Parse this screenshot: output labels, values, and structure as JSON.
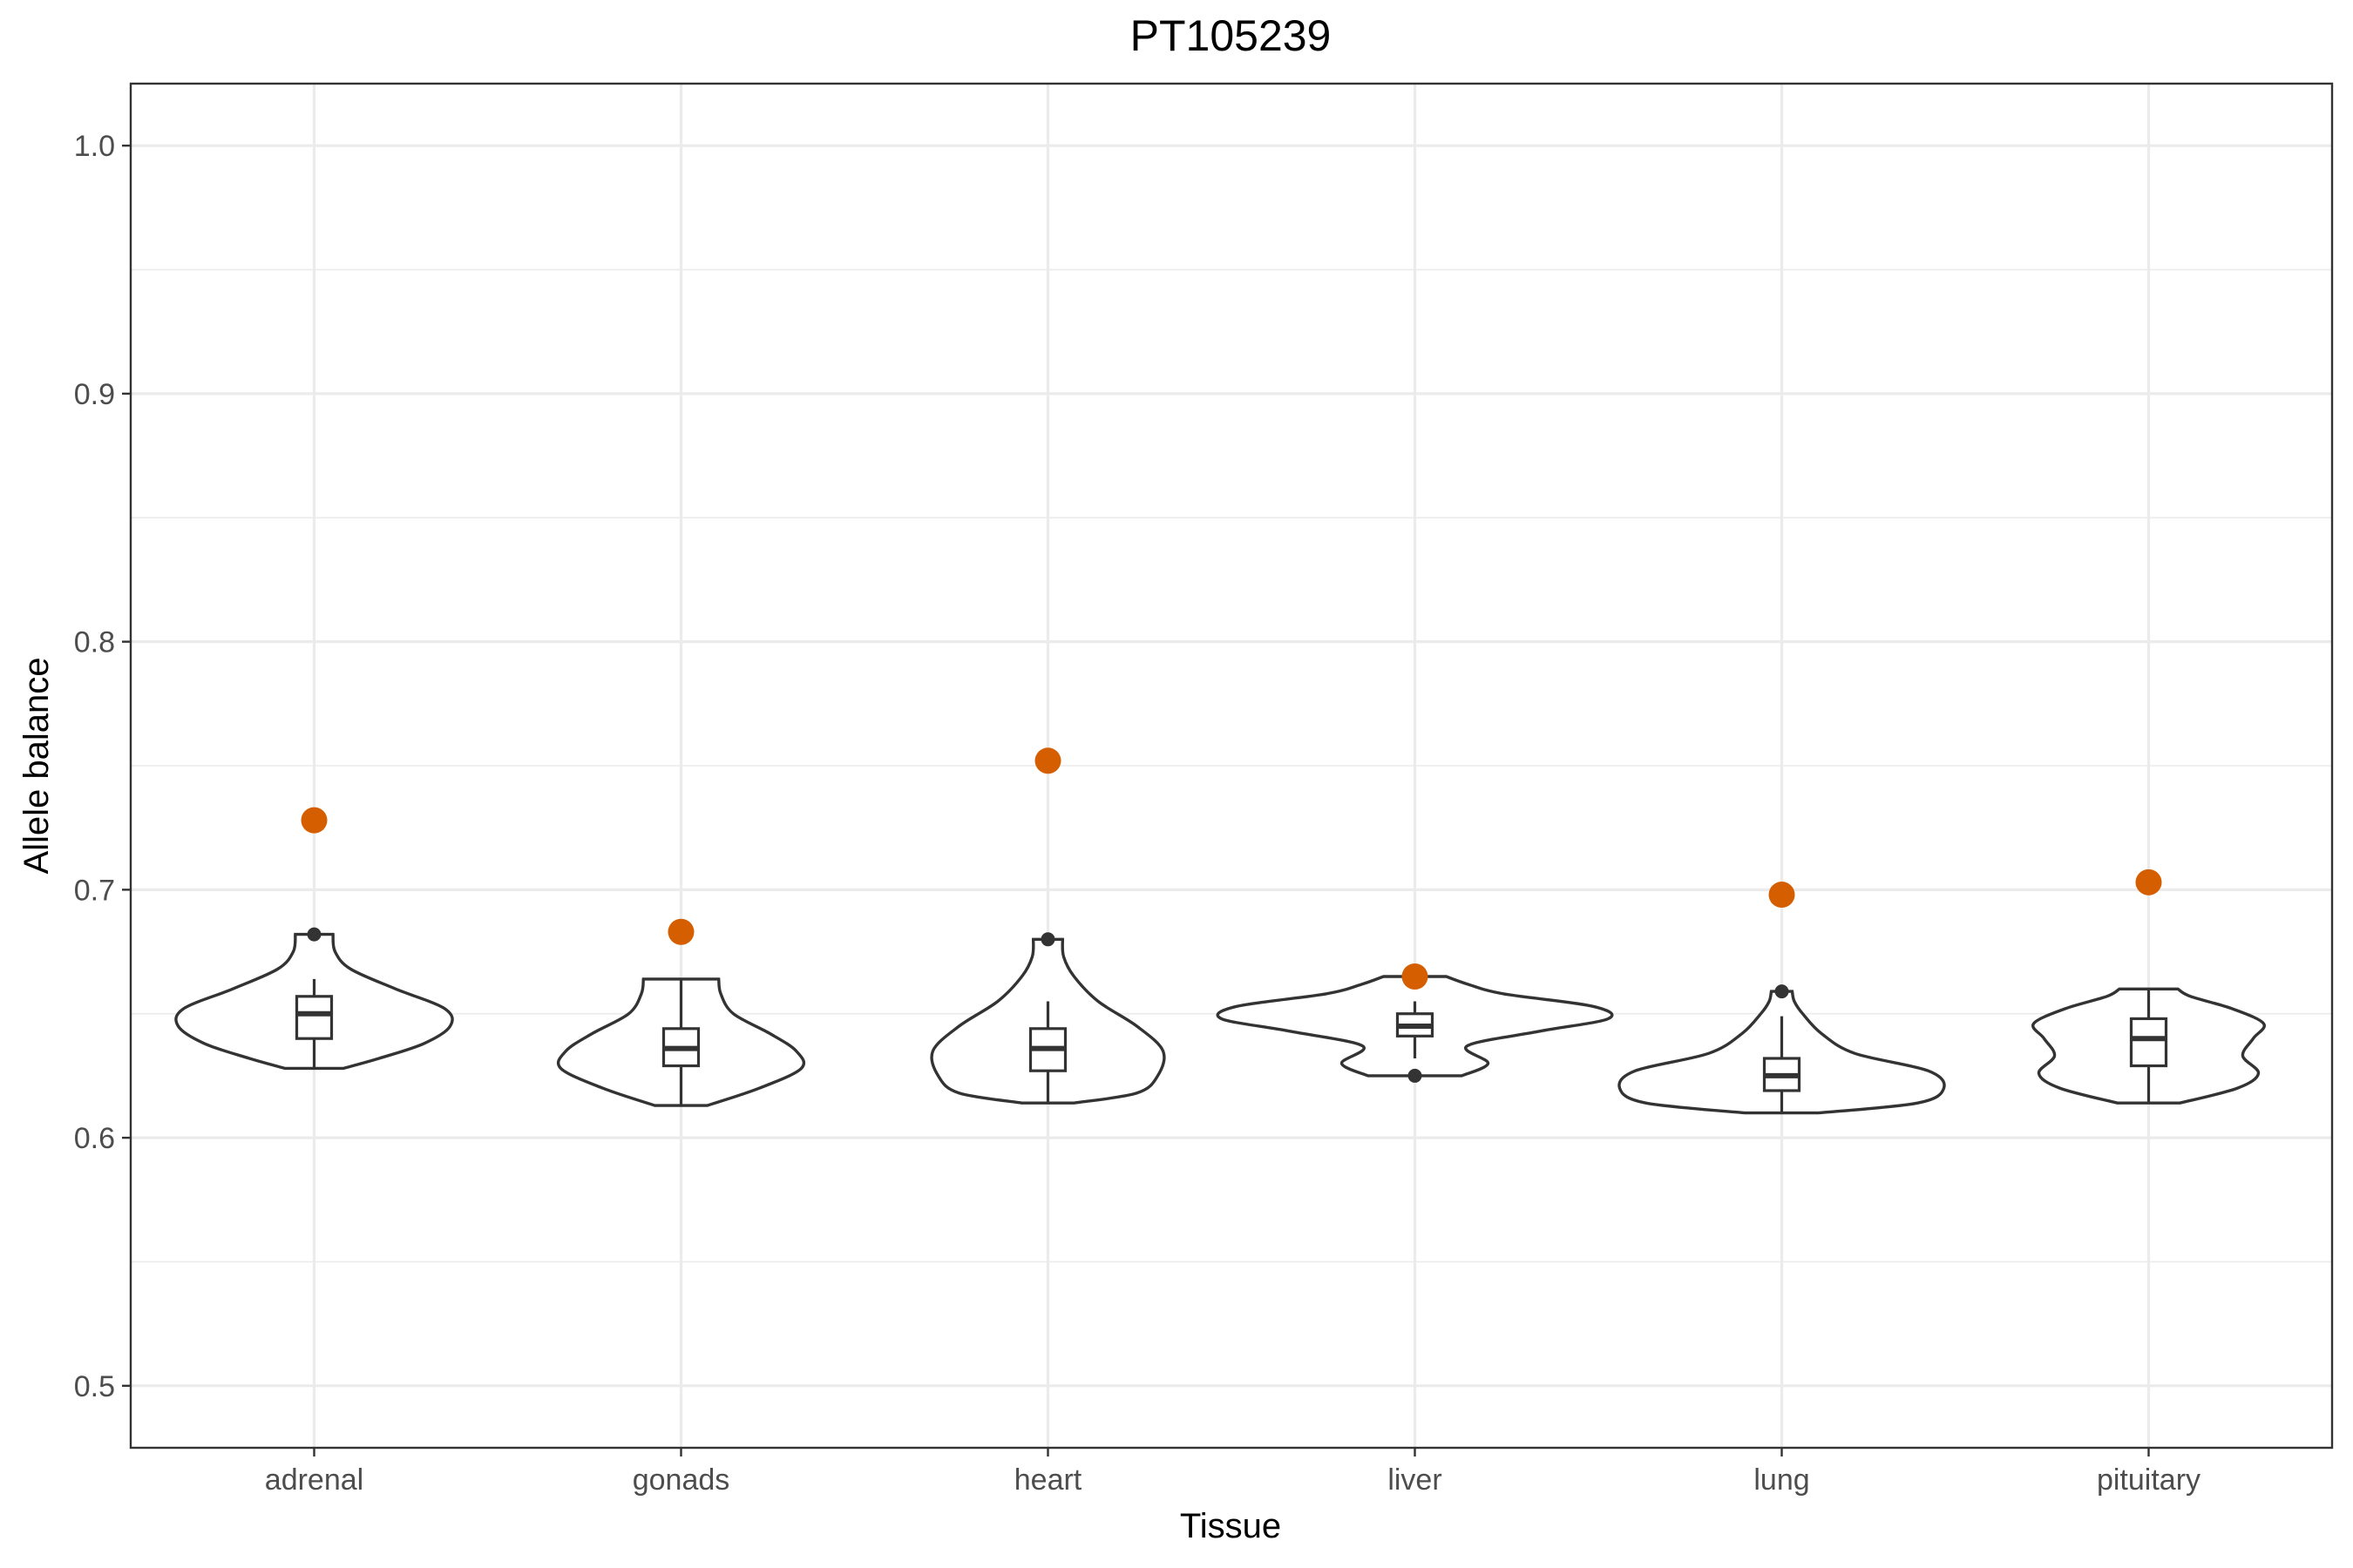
{
  "chart_data": {
    "type": "violin",
    "title": "PT105239",
    "xlabel": "Tissue",
    "ylabel": "Allele balance",
    "ylim": [
      0.475,
      1.025
    ],
    "y_ticks": [
      "0.5",
      "0.6",
      "0.7",
      "0.8",
      "0.9",
      "1.0"
    ],
    "grid": true,
    "highlight_color": "#d55e00",
    "outline_color": "#333333",
    "categories": [
      "adrenal",
      "gonads",
      "heart",
      "liver",
      "lung",
      "pituitary"
    ],
    "groups": [
      {
        "name": "adrenal",
        "box": {
          "whisker_low": 0.628,
          "q1": 0.64,
          "median": 0.65,
          "q3": 0.657,
          "whisker_high": 0.664
        },
        "outliers": [
          0.682
        ],
        "highlight": 0.728,
        "violin": [
          [
            0.628,
            0.028
          ],
          [
            0.632,
            0.062
          ],
          [
            0.638,
            0.105
          ],
          [
            0.645,
            0.13
          ],
          [
            0.652,
            0.125
          ],
          [
            0.66,
            0.078
          ],
          [
            0.668,
            0.035
          ],
          [
            0.675,
            0.02
          ],
          [
            0.682,
            0.018
          ]
        ]
      },
      {
        "name": "gonads",
        "box": {
          "whisker_low": 0.613,
          "q1": 0.629,
          "median": 0.636,
          "q3": 0.644,
          "whisker_high": 0.664
        },
        "outliers": [],
        "highlight": 0.683,
        "violin": [
          [
            0.613,
            0.025
          ],
          [
            0.62,
            0.075
          ],
          [
            0.628,
            0.115
          ],
          [
            0.635,
            0.11
          ],
          [
            0.642,
            0.085
          ],
          [
            0.65,
            0.05
          ],
          [
            0.658,
            0.038
          ],
          [
            0.664,
            0.036
          ]
        ]
      },
      {
        "name": "heart",
        "box": {
          "whisker_low": 0.614,
          "q1": 0.627,
          "median": 0.636,
          "q3": 0.644,
          "whisker_high": 0.655
        },
        "outliers": [
          0.68
        ],
        "highlight": 0.752,
        "violin": [
          [
            0.614,
            0.025
          ],
          [
            0.618,
            0.085
          ],
          [
            0.625,
            0.105
          ],
          [
            0.635,
            0.11
          ],
          [
            0.645,
            0.085
          ],
          [
            0.655,
            0.048
          ],
          [
            0.665,
            0.025
          ],
          [
            0.673,
            0.015
          ],
          [
            0.68,
            0.014
          ]
        ]
      },
      {
        "name": "liver",
        "box": {
          "whisker_low": 0.632,
          "q1": 0.641,
          "median": 0.645,
          "q3": 0.65,
          "whisker_high": 0.655
        },
        "outliers": [
          0.625
        ],
        "highlight": 0.665,
        "violin": [
          [
            0.625,
            0.045
          ],
          [
            0.63,
            0.07
          ],
          [
            0.637,
            0.05
          ],
          [
            0.643,
            0.12
          ],
          [
            0.648,
            0.185
          ],
          [
            0.653,
            0.17
          ],
          [
            0.658,
            0.085
          ],
          [
            0.662,
            0.05
          ],
          [
            0.665,
            0.03
          ]
        ]
      },
      {
        "name": "lung",
        "box": {
          "whisker_low": 0.61,
          "q1": 0.619,
          "median": 0.625,
          "q3": 0.632,
          "whisker_high": 0.649
        },
        "outliers": [
          0.659
        ],
        "highlight": 0.698,
        "violin": [
          [
            0.61,
            0.035
          ],
          [
            0.614,
            0.13
          ],
          [
            0.62,
            0.155
          ],
          [
            0.627,
            0.14
          ],
          [
            0.634,
            0.07
          ],
          [
            0.642,
            0.038
          ],
          [
            0.65,
            0.02
          ],
          [
            0.655,
            0.012
          ],
          [
            0.659,
            0.01
          ]
        ]
      },
      {
        "name": "pituitary",
        "box": {
          "whisker_low": 0.614,
          "q1": 0.629,
          "median": 0.64,
          "q3": 0.648,
          "whisker_high": 0.66
        },
        "outliers": [],
        "highlight": 0.703,
        "violin": [
          [
            0.614,
            0.03
          ],
          [
            0.62,
            0.085
          ],
          [
            0.626,
            0.105
          ],
          [
            0.633,
            0.09
          ],
          [
            0.64,
            0.1
          ],
          [
            0.646,
            0.11
          ],
          [
            0.652,
            0.08
          ],
          [
            0.657,
            0.04
          ],
          [
            0.66,
            0.028
          ]
        ]
      }
    ]
  }
}
